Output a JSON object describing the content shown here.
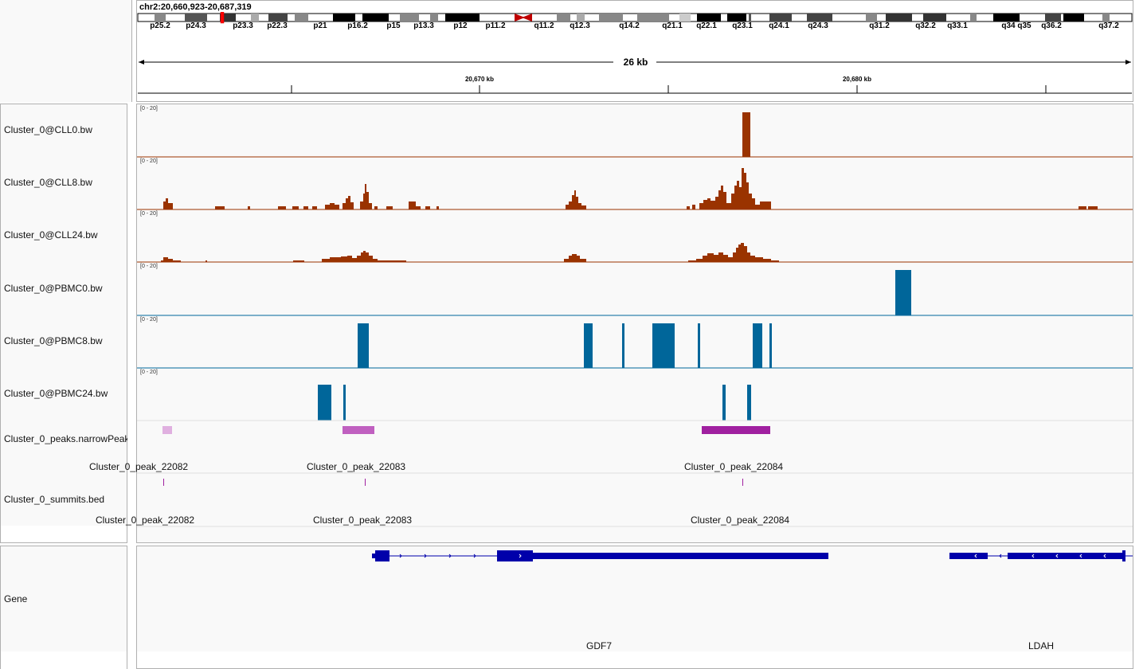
{
  "locus": "chr2:20,660,923-20,687,319",
  "ideogram": {
    "bands": [
      "p25.2",
      "p24.3",
      "p23.3",
      "p22.3",
      "p21",
      "p16.2",
      "p15",
      "p13.3",
      "p12",
      "p11.2",
      "q11.2",
      "q12.3",
      "q14.2",
      "q21.1",
      "q22.1",
      "q23.1",
      "q24.1",
      "q24.3",
      "q31.2",
      "q32.2",
      "q33.1",
      "q34",
      "q35",
      "q36.2",
      "q37.2"
    ]
  },
  "ruler": {
    "span": "26 kb",
    "tick1": "20,670 kb",
    "tick2": "20,680 kb"
  },
  "tracks": [
    {
      "name": "Cluster_0@CLL0.bw",
      "range": "[0 - 20]",
      "color": "#9a3300"
    },
    {
      "name": "Cluster_0@CLL8.bw",
      "range": "[0 - 20]",
      "color": "#9a3300"
    },
    {
      "name": "Cluster_0@CLL24.bw",
      "range": "[0 - 20]",
      "color": "#9a3300"
    },
    {
      "name": "Cluster_0@PBMC0.bw",
      "range": "[0 - 20]",
      "color": "#00669a"
    },
    {
      "name": "Cluster_0@PBMC8.bw",
      "range": "[0 - 20]",
      "color": "#00669a"
    },
    {
      "name": "Cluster_0@PBMC24.bw",
      "range": "[0 - 20]",
      "color": "#00669a"
    }
  ],
  "peaks_track": {
    "name": "Cluster_0_peaks.narrowPeak",
    "features": [
      "Cluster_0_peak_22082",
      "Cluster_0_peak_22083",
      "Cluster_0_peak_22084"
    ]
  },
  "summits_track": {
    "name": "Cluster_0_summits.bed",
    "features": [
      "Cluster_0_peak_22082",
      "Cluster_0_peak_22083",
      "Cluster_0_peak_22084"
    ]
  },
  "gene_track": {
    "name": "Gene",
    "genes": [
      "GDF7",
      "LDAH"
    ]
  },
  "colors": {
    "cll": "#9a3300",
    "pbmc": "#00669a",
    "peak": "#a020a0",
    "gene": "#0000aa"
  }
}
